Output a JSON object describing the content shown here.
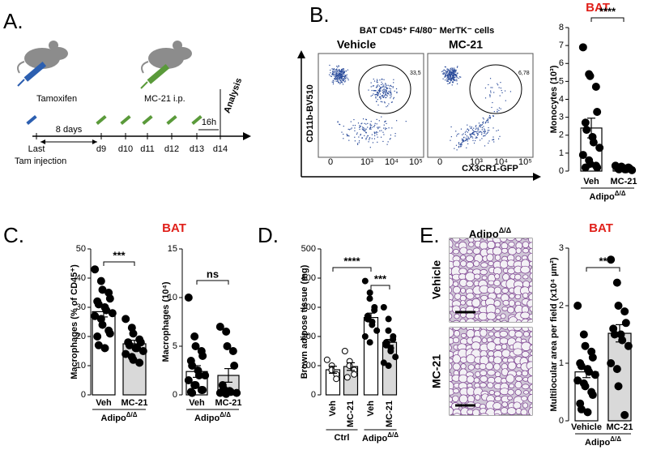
{
  "panel_labels": [
    "A.",
    "B.",
    "C.",
    "D.",
    "E."
  ],
  "timeline": {
    "drugs": [
      "Tamoxifen",
      "MC-21 i.p."
    ],
    "interval": "8 days",
    "days": [
      "d9",
      "d10",
      "d11",
      "d12",
      "d13",
      "d14"
    ],
    "last_injection": [
      "Last",
      "Tam injection"
    ],
    "wait": "16h",
    "endpoint": "Analysis"
  },
  "cytometry": {
    "title": "BAT CD45⁺ F4/80⁻ MerTK⁻ cells",
    "conditions": [
      "Vehicle",
      "MC-21"
    ],
    "gate_values": [
      "33,5",
      "6,78"
    ],
    "ylabel": "CD11b-BV510",
    "xlabel": "CX3CR1-GFP",
    "xticks": [
      "0",
      "10³",
      "10⁴",
      "10⁵"
    ]
  },
  "c_title": "BAT",
  "histology": {
    "genotype": {
      "text": "Adipo",
      "sup": "Δ/Δ"
    },
    "rows": [
      "Vehicle",
      "MC-21"
    ]
  },
  "chart_data": [
    {
      "type": "bar",
      "title": "BAT",
      "ylabel": "Monocytes (10³)",
      "ylim": [
        0,
        8
      ],
      "yticks": [
        0,
        1,
        2,
        3,
        4,
        5,
        6,
        7,
        8
      ],
      "significance": [
        "****"
      ],
      "groups": [
        {
          "label": {
            "text": "Adipo",
            "sup": "Δ/Δ"
          },
          "categories": [
            "Veh",
            "MC-21"
          ],
          "colors": [
            "#ffffff",
            "#d9d9d9"
          ],
          "point_fill": "#000000",
          "values": [
            2.4,
            0.2
          ],
          "errors": [
            0.55,
            0.03
          ],
          "points": [
            [
              6.9,
              5.4,
              5.3,
              4.7,
              3.3,
              2.7,
              2.3,
              1.9,
              1.6,
              1.3,
              0.9,
              0.6,
              0.4,
              0.3,
              0.2,
              0.2
            ],
            [
              0.3,
              0.25,
              0.2,
              0.2,
              0.15,
              0.15,
              0.1,
              0.1,
              0.1,
              0.05
            ]
          ]
        }
      ]
    },
    {
      "type": "bar",
      "ylabel": "Macrophages (% of CD45⁺)",
      "ylim": [
        0,
        50
      ],
      "yticks": [
        0,
        10,
        20,
        30,
        40,
        50
      ],
      "significance": [
        "***"
      ],
      "groups": [
        {
          "label": {
            "text": "Adipo",
            "sup": "Δ/Δ"
          },
          "categories": [
            "Veh",
            "MC-21"
          ],
          "colors": [
            "#ffffff",
            "#d9d9d9"
          ],
          "point_fill": "#000000",
          "values": [
            28.5,
            17.5
          ],
          "errors": [
            1.8,
            1.2
          ],
          "points": [
            [
              43,
              39,
              36,
              35,
              33,
              32,
              31,
              30,
              29,
              28,
              27,
              26,
              24,
              22,
              21,
              20,
              17,
              16
            ],
            [
              26,
              23,
              21,
              19,
              18,
              18,
              17,
              16,
              16,
              15,
              14,
              13,
              12,
              11
            ]
          ]
        }
      ]
    },
    {
      "type": "bar",
      "ylabel": "Macrophages (10⁴)",
      "ylim": [
        0,
        15
      ],
      "yticks": [
        0,
        5,
        10,
        15
      ],
      "significance": [
        "ns"
      ],
      "groups": [
        {
          "label": {
            "text": "Adipo",
            "sup": "Δ/Δ"
          },
          "categories": [
            "Veh",
            "MC-21"
          ],
          "colors": [
            "#ffffff",
            "#d9d9d9"
          ],
          "point_fill": "#000000",
          "values": [
            2.4,
            2.0
          ],
          "errors": [
            0.6,
            0.7
          ],
          "points": [
            [
              10,
              6,
              5,
              4.5,
              4,
              3.5,
              3,
              2.5,
              2,
              2,
              1.5,
              1,
              1,
              0.5,
              0.5,
              0.3,
              0.2
            ],
            [
              7,
              6.5,
              5,
              4.5,
              3,
              1,
              0.6,
              0.4,
              0.3,
              0.2,
              0.2,
              0.1
            ]
          ]
        }
      ]
    },
    {
      "type": "bar",
      "ylabel": "Brown adipose tissue (mg)",
      "ylim": [
        0,
        500
      ],
      "yticks": [
        0,
        100,
        200,
        300,
        400,
        500
      ],
      "significance": [
        "****",
        "***"
      ],
      "groups": [
        {
          "label": "Ctrl",
          "categories": [
            "Veh",
            "MC-21"
          ],
          "colors": [
            "#ffffff",
            "#d9d9d9"
          ],
          "point_fill": "#ffffff",
          "values": [
            86,
            97
          ],
          "errors": [
            12,
            13
          ],
          "points": [
            [
              120,
              100,
              85,
              70,
              55
            ],
            [
              150,
              115,
              100,
              85,
              70,
              60
            ]
          ]
        },
        {
          "label": {
            "text": "Adipo",
            "sup": "Δ/Δ"
          },
          "categories": [
            "Veh",
            "MC-21"
          ],
          "colors": [
            "#ffffff",
            "#d9d9d9"
          ],
          "point_fill": "#000000",
          "values": [
            265,
            180
          ],
          "errors": [
            15,
            10
          ],
          "points": [
            [
              390,
              350,
              330,
              300,
              290,
              270,
              260,
              250,
              240,
              220,
              200,
              180
            ],
            [
              300,
              260,
              220,
              200,
              190,
              180,
              170,
              160,
              150,
              130,
              110,
              100
            ]
          ]
        }
      ]
    },
    {
      "type": "bar",
      "title": "BAT",
      "ylabel": "Multilocular area per field (x10⁴ µm²)",
      "ylim": [
        0,
        3
      ],
      "yticks": [
        0,
        1,
        2,
        3
      ],
      "significance": [
        "**"
      ],
      "groups": [
        {
          "label": {
            "text": "Adipo",
            "sup": "Δ/Δ"
          },
          "categories": [
            "Vehicle",
            "MC-21"
          ],
          "colors": [
            "#ffffff",
            "#d9d9d9"
          ],
          "point_fill": "#000000",
          "values": [
            0.85,
            1.52
          ],
          "errors": [
            0.1,
            0.15
          ],
          "points": [
            [
              2.0,
              1.5,
              1.3,
              1.2,
              1.1,
              1.0,
              0.95,
              0.9,
              0.85,
              0.8,
              0.7,
              0.65,
              0.6,
              0.5,
              0.45,
              0.3,
              0.2,
              0.15
            ],
            [
              2.8,
              2.4,
              2.0,
              1.9,
              1.7,
              1.6,
              1.5,
              1.5,
              1.4,
              1.3,
              1.0,
              0.9,
              0.6,
              0.1
            ]
          ]
        }
      ]
    }
  ]
}
